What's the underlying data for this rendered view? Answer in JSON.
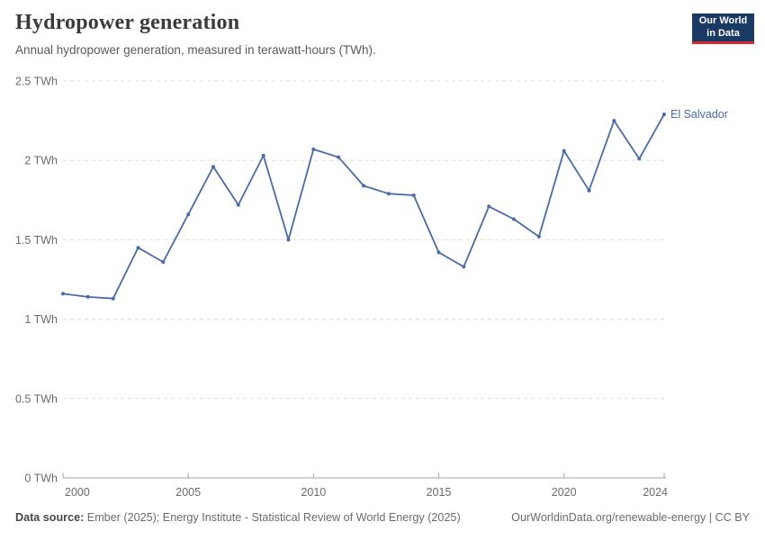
{
  "header": {
    "title": "Hydropower generation",
    "subtitle": "Annual hydropower generation, measured in terawatt-hours (TWh)."
  },
  "logo": {
    "line1": "Our World",
    "line2": "in Data"
  },
  "chart_data": {
    "type": "line",
    "title": "Hydropower generation",
    "unit": "TWh",
    "x": [
      2000,
      2001,
      2002,
      2003,
      2004,
      2005,
      2006,
      2007,
      2008,
      2009,
      2010,
      2011,
      2012,
      2013,
      2014,
      2015,
      2016,
      2017,
      2018,
      2019,
      2020,
      2021,
      2022,
      2023,
      2024
    ],
    "series": [
      {
        "name": "El Salvador",
        "values": [
          1.16,
          1.14,
          1.13,
          1.45,
          1.36,
          1.66,
          1.96,
          1.72,
          2.03,
          1.5,
          2.07,
          2.02,
          1.84,
          1.79,
          1.78,
          1.42,
          1.33,
          1.71,
          1.63,
          1.52,
          2.06,
          1.81,
          2.25,
          2.01,
          2.29
        ]
      }
    ],
    "end_label": "El Salvador",
    "ylim": [
      0,
      2.5
    ],
    "xlim": [
      2000,
      2024
    ],
    "grid": true,
    "legend_position": "end-of-line-label",
    "y_ticks": [
      {
        "value": 0,
        "label": "0 TWh"
      },
      {
        "value": 0.5,
        "label": "0.5 TWh"
      },
      {
        "value": 1,
        "label": "1 TWh"
      },
      {
        "value": 1.5,
        "label": "1.5 TWh"
      },
      {
        "value": 2,
        "label": "2 TWh"
      },
      {
        "value": 2.5,
        "label": "2.5 TWh"
      }
    ],
    "x_ticks": [
      "2000",
      "2005",
      "2010",
      "2015",
      "2020",
      "2024"
    ]
  },
  "footer": {
    "source_label": "Data source:",
    "source_text": " Ember (2025); Energy Institute - Statistical Review of World Energy (2025)",
    "right_text": "OurWorldinData.org/renewable-energy | CC BY"
  },
  "colors": {
    "line": "#4a6aa8",
    "entity_label": "#4a6aa8",
    "logo_bg": "#1a3a63",
    "logo_red": "#d42b2f",
    "grid": "#dcdcdc",
    "axis": "#a2a2a2",
    "tick_text": "#6b6b6b"
  }
}
